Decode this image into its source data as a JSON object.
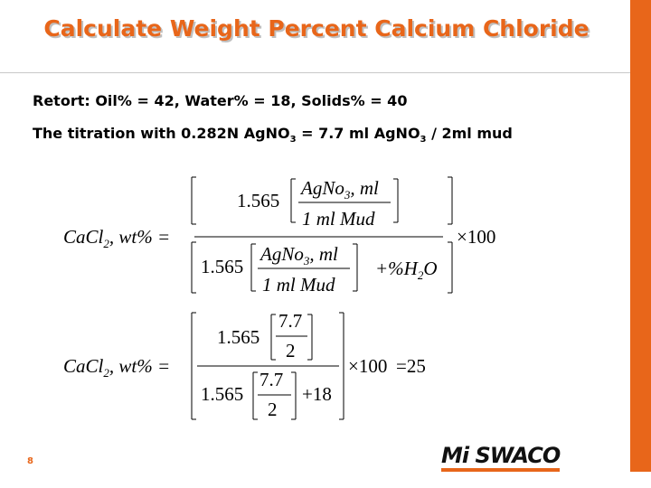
{
  "header": {
    "title": "Calculate Weight Percent Calcium Chloride"
  },
  "bullets": [
    {
      "text": "Retort: Oil% = 42, Water% = 18, Solids% = 40"
    },
    {
      "parts": [
        "The titration with 0.282N AgNO",
        "3",
        " = 7.7 ml AgNO",
        "3",
        " / 2ml mud"
      ]
    }
  ],
  "equation_1": {
    "lhs": "CaCl",
    "lhs_sub": "2",
    "lhs_rest": ", wt% =",
    "factor": "1.565",
    "num": "AgNo",
    "num_sub": "3",
    "num_rest": ", ml",
    "den": "1 ml Mud",
    "water": "+%H",
    "water_sub": "2",
    "water_rest": "O",
    "multiplier": "×100"
  },
  "equation_2": {
    "lhs": "CaCl",
    "lhs_sub": "2",
    "lhs_rest": ", wt% =",
    "factor": "1.565",
    "num": "7.7",
    "den": "2",
    "water": "+18",
    "multiplier": "×100",
    "result": "=25"
  },
  "footer": {
    "page": "8",
    "logo": "Mi SWACO"
  }
}
